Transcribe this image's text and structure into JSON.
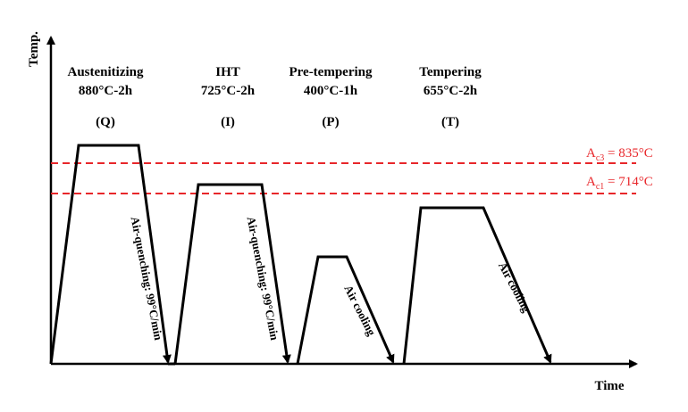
{
  "axes": {
    "y_label": "Temp.",
    "x_label": "Time"
  },
  "stages": [
    {
      "name": "Austenitizing",
      "condition": "880°C-2h",
      "code": "(Q)",
      "cooling": "Air-quenching: 99°C/min"
    },
    {
      "name": "IHT",
      "condition": "725°C-2h",
      "code": "(I)",
      "cooling": "Air-quenching: 99°C/min"
    },
    {
      "name": "Pre-tempering",
      "condition": "400°C-1h",
      "code": "(P)",
      "cooling": "Air cooling"
    },
    {
      "name": "Tempering",
      "condition": "655°C-2h",
      "code": "(T)",
      "cooling": "Air cooling"
    }
  ],
  "critical_lines": [
    {
      "symbol": "A",
      "subscript": "c3",
      "value_text": " = 835°C"
    },
    {
      "symbol": "A",
      "subscript": "c1",
      "value_text": " = 714°C"
    }
  ]
}
